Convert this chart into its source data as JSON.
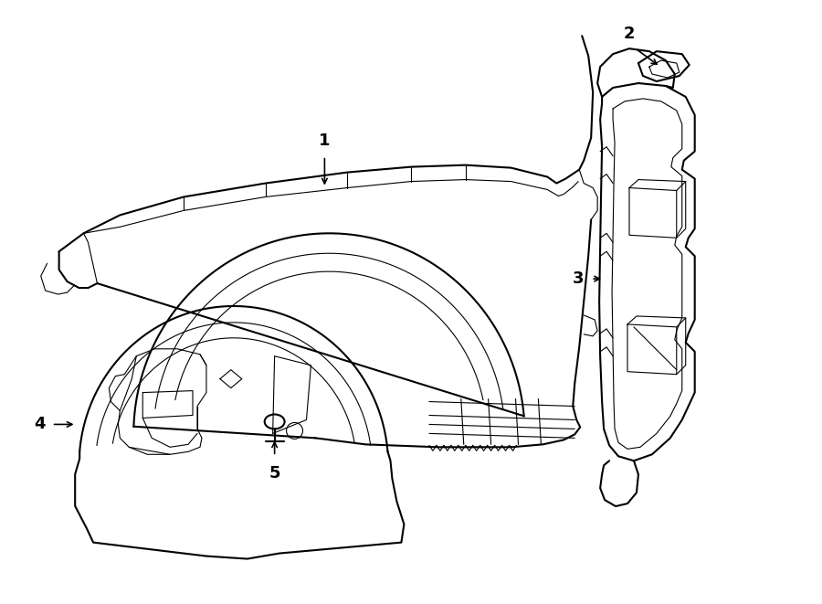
{
  "bg_color": "#ffffff",
  "line_color": "#000000",
  "lw_main": 1.5,
  "lw_thin": 0.8,
  "figsize": [
    9.0,
    6.61
  ],
  "dpi": 100
}
